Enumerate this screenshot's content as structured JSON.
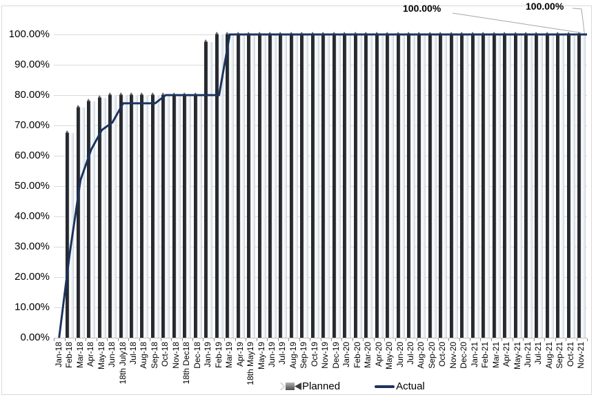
{
  "chart_data": {
    "type": "combo-bar-line",
    "title": "",
    "categories": [
      "Jan-18",
      "Feb-18",
      "Mar-18",
      "Apr-18",
      "May-18",
      "Jun-18",
      "18th July18",
      "Jul-18",
      "Aug-18",
      "Sep-18",
      "Oct-18",
      "Nov-18",
      "18th Dec18",
      "Dec-18",
      "Jan-19",
      "Feb-19",
      "Mar-19",
      "Apr-19",
      "18th May19",
      "May-19",
      "Jun-19",
      "Jul-19",
      "Aug-19",
      "Sep-19",
      "Oct-19",
      "Nov-19",
      "Dec-19",
      "Jan-20",
      "Feb-20",
      "Mar-20",
      "Apr-20",
      "May-20",
      "Jun-20",
      "Jul-20",
      "Aug-20",
      "Sep-20",
      "Oct-20",
      "Nov-20",
      "Dec-20",
      "Jan-21",
      "Feb-21",
      "Mar-21",
      "Apr-21",
      "May-21",
      "Jun-21",
      "Jul-21",
      "Aug-21",
      "Sep-21",
      "Oct-21",
      "Nov-21"
    ],
    "series": [
      {
        "name": "Planned",
        "type": "bar",
        "color_dark": "#26292f",
        "color_light": "#eef1f5",
        "values": [
          0,
          67.5,
          76,
          78,
          79,
          80,
          80,
          80,
          80,
          80,
          80,
          80,
          80,
          80,
          97.5,
          100,
          100,
          100,
          100,
          100,
          100,
          100,
          100,
          100,
          100,
          100,
          100,
          100,
          100,
          100,
          100,
          100,
          100,
          100,
          100,
          100,
          100,
          100,
          100,
          100,
          100,
          100,
          100,
          100,
          100,
          100,
          100,
          100,
          100,
          100
        ]
      },
      {
        "name": "Actual",
        "type": "line",
        "color": "#1b3360",
        "values": [
          0,
          28,
          52,
          62,
          68.5,
          71,
          77.3,
          77.3,
          77.3,
          77.3,
          80,
          80,
          80,
          80,
          80,
          80,
          100,
          100,
          100,
          100,
          100,
          100,
          100,
          100,
          100,
          100,
          100,
          100,
          100,
          100,
          100,
          100,
          100,
          100,
          100,
          100,
          100,
          100,
          100,
          100,
          100,
          100,
          100,
          100,
          100,
          100,
          100,
          100,
          100,
          100
        ]
      }
    ],
    "y_axis": {
      "min": 0,
      "max": 100,
      "step": 10,
      "tick_labels": [
        "0.00%",
        "10.00%",
        "20.00%",
        "30.00%",
        "40.00%",
        "50.00%",
        "60.00%",
        "70.00%",
        "80.00%",
        "90.00%",
        "100.00%"
      ]
    },
    "data_labels": [
      {
        "text": "100.00%",
        "series": "Planned",
        "category": "Nov-21"
      },
      {
        "text": "100.00%",
        "series": "Actual",
        "category": "Nov-21"
      }
    ],
    "legend": {
      "position": "bottom",
      "items": [
        {
          "label": "Planned",
          "marker": "arrow-bar-icon"
        },
        {
          "label": "Actual",
          "marker": "line-icon"
        }
      ]
    },
    "grid": true
  }
}
